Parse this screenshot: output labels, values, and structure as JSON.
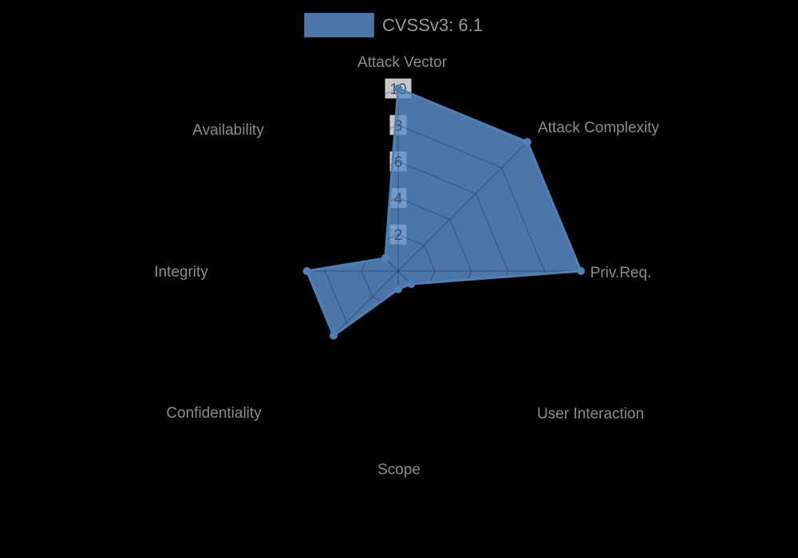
{
  "page": {
    "background_color": "#000000"
  },
  "legend": {
    "label": "CVSSv3: 6.1",
    "swatch_color": "#4d76a8"
  },
  "chart_data": {
    "type": "radar",
    "title": "",
    "categories": [
      "Attack Vector",
      "Attack Complexity",
      "Priv.Req.",
      "User Interaction",
      "Scope",
      "Confidentiality",
      "Integrity",
      "Availability"
    ],
    "series": [
      {
        "name": "CVSSv3: 6.1",
        "values": [
          10,
          10,
          10,
          1,
          1,
          5,
          5,
          1
        ],
        "base_color": "#5e90cd",
        "fill_opacity": 0.82,
        "border_color": "#4f7fb5",
        "marker_color": "#4f7fb5"
      }
    ],
    "ticks": [
      2,
      4,
      6,
      8,
      10
    ],
    "rlim": [
      0,
      10
    ],
    "grid": "spider-web",
    "grid_color": "rgba(0,0,0,0.2)",
    "tick_backdrop_color": "rgba(255,255,255,0.78)",
    "tick_label_color": "#44506b",
    "point_label_color": "#8b8b8b",
    "legend_position": "top"
  }
}
